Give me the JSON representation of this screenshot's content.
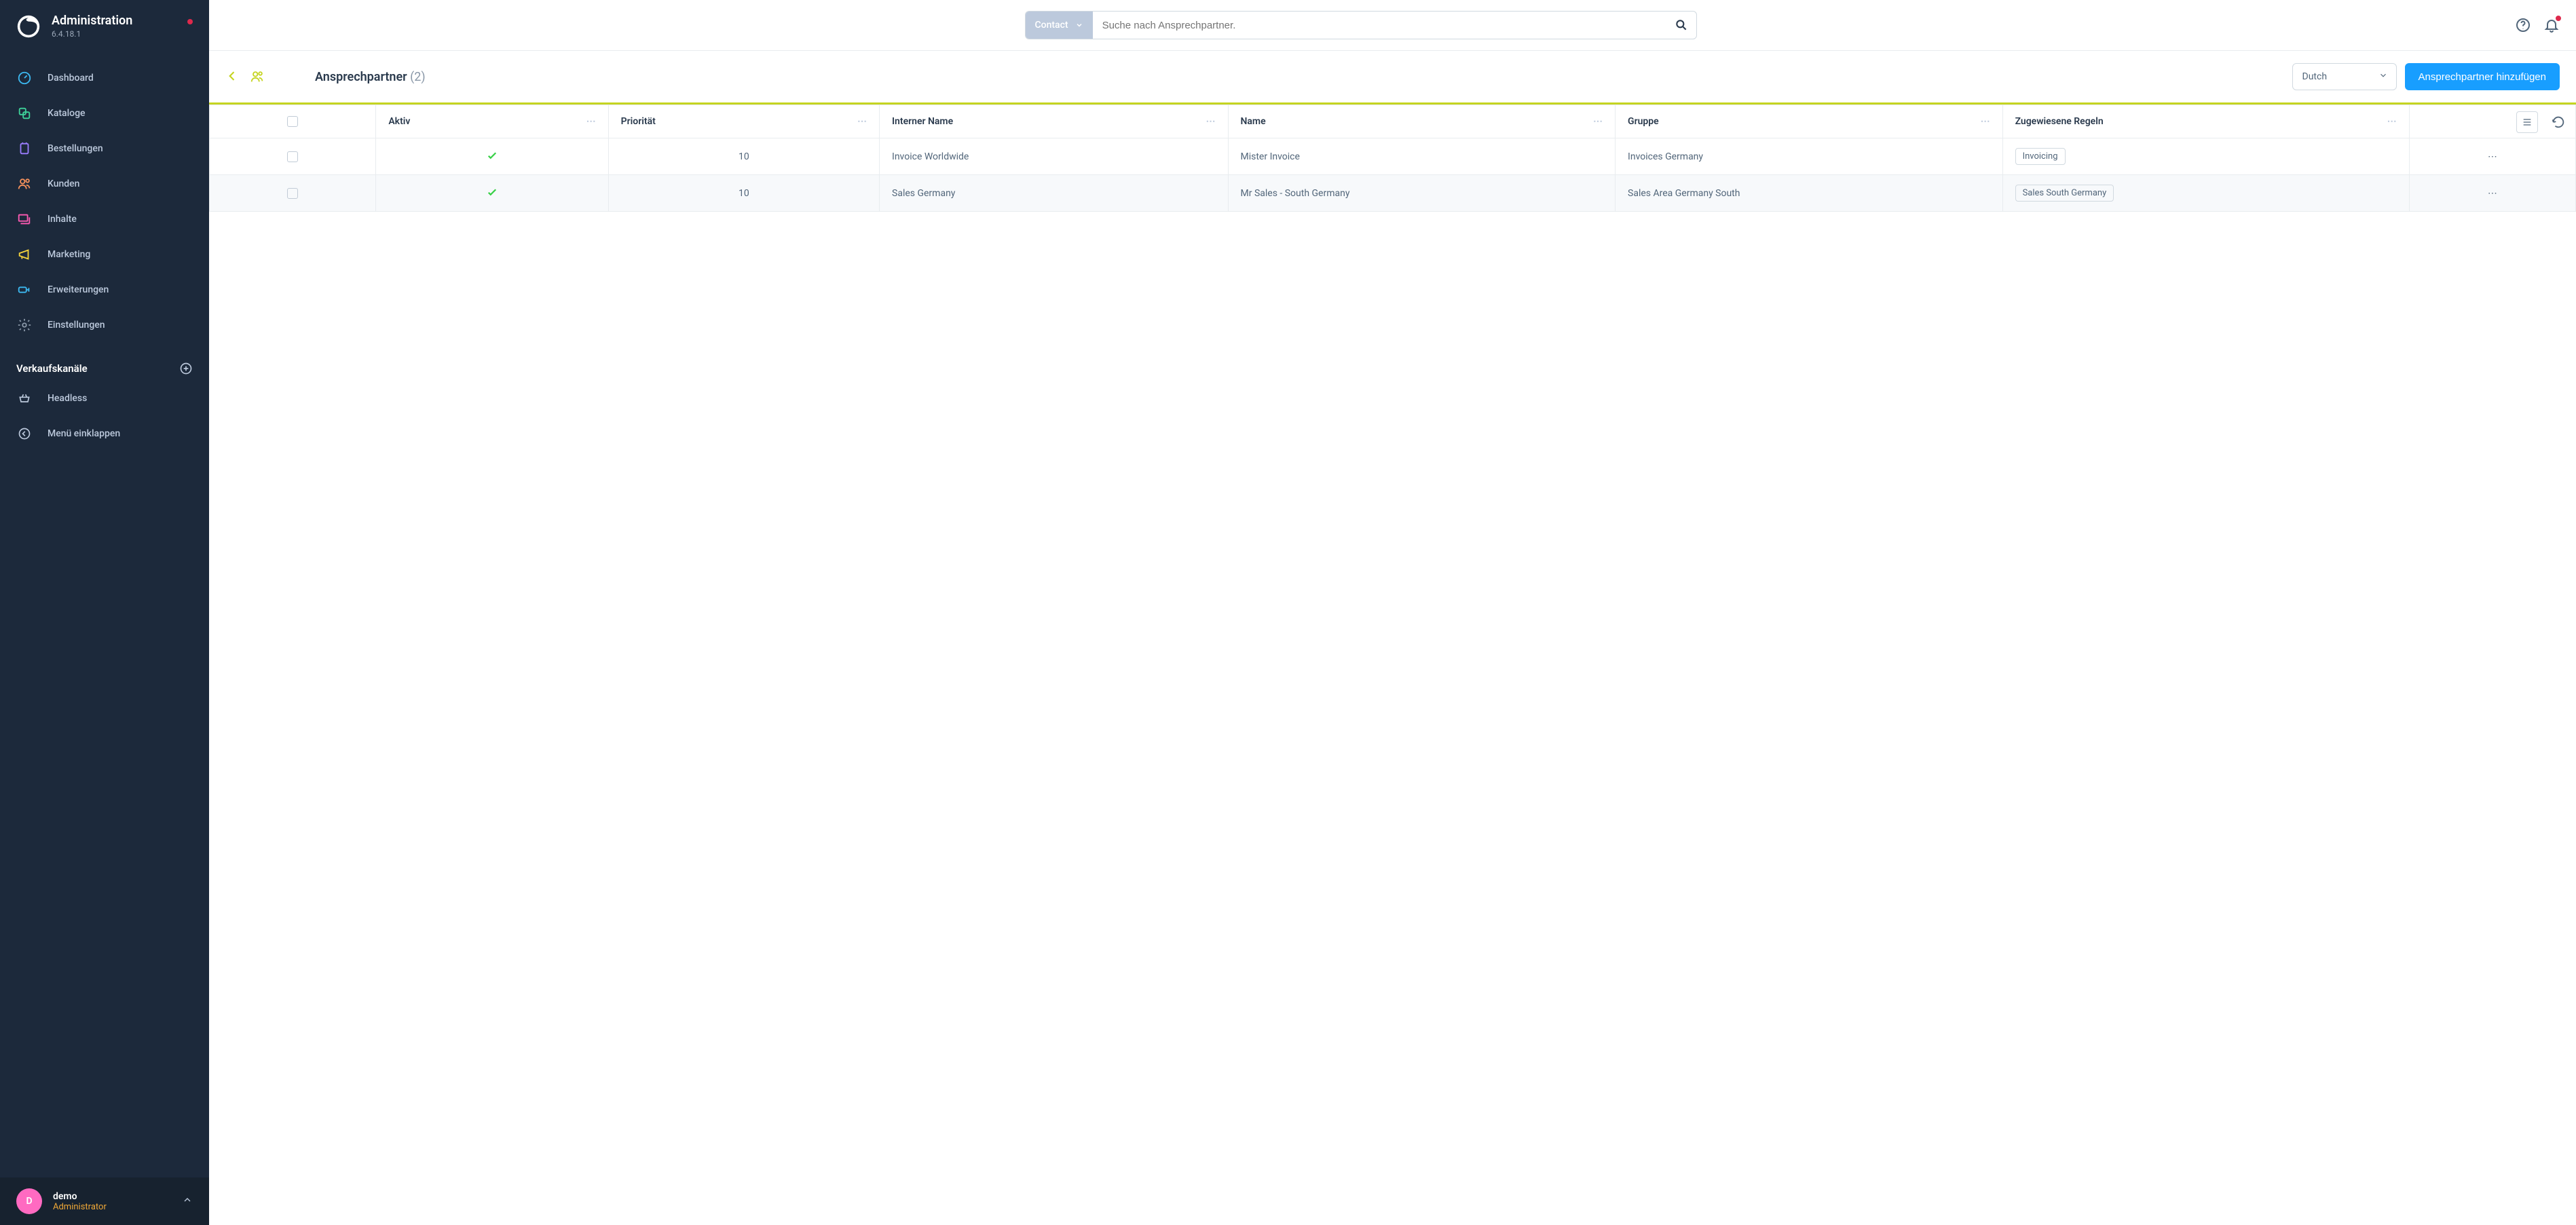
{
  "app": {
    "title": "Administration",
    "version": "6.4.18.1"
  },
  "search": {
    "scope": "Contact",
    "placeholder": "Suche nach Ansprechpartner."
  },
  "nav": [
    {
      "key": "dashboard",
      "label": "Dashboard"
    },
    {
      "key": "catalogs",
      "label": "Kataloge"
    },
    {
      "key": "orders",
      "label": "Bestellungen"
    },
    {
      "key": "customers",
      "label": "Kunden"
    },
    {
      "key": "content",
      "label": "Inhalte"
    },
    {
      "key": "marketing",
      "label": "Marketing"
    },
    {
      "key": "extensions",
      "label": "Erweiterungen"
    },
    {
      "key": "settings",
      "label": "Einstellungen"
    }
  ],
  "channels": {
    "title": "Verkaufskanäle",
    "items": [
      {
        "label": "Headless"
      }
    ]
  },
  "collapse_label": "Menü einklappen",
  "user": {
    "name": "demo",
    "role": "Administrator",
    "initial": "D"
  },
  "page": {
    "title": "Ansprechpartner",
    "count": "(2)"
  },
  "language_select": {
    "value": "Dutch"
  },
  "primary_button": "Ansprechpartner hinzufügen",
  "columns": {
    "aktiv": "Aktiv",
    "prioritaet": "Priorität",
    "interner_name": "Interner Name",
    "name": "Name",
    "gruppe": "Gruppe",
    "regeln": "Zugewiesene Regeln"
  },
  "rows": [
    {
      "aktiv": true,
      "prio": "10",
      "intern": "Invoice Worldwide",
      "name": "Mister Invoice",
      "gruppe": "Invoices Germany",
      "regel": "Invoicing"
    },
    {
      "aktiv": true,
      "prio": "10",
      "intern": "Sales Germany",
      "name": "Mr Sales - South Germany",
      "gruppe": "Sales Area Germany South",
      "regel": "Sales South Germany"
    }
  ],
  "colors": {
    "sidebar_bg": "#1c293b",
    "primary": "#189eff",
    "accent_line": "#c5d420",
    "success": "#37d046",
    "danger": "#de294c",
    "role": "#f0a837",
    "avatar": "#ff6ac1"
  }
}
